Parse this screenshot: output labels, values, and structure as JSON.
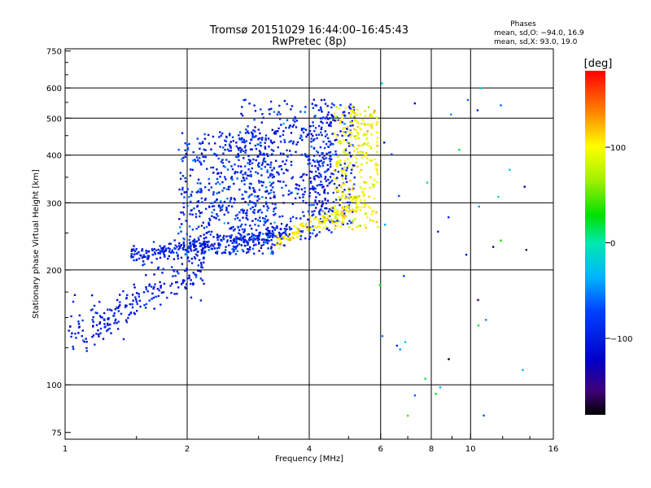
{
  "chart_data": {
    "type": "scatter",
    "title": "Tromsø 20151029 16:44:00–16:45:43",
    "subtitle": "RwPretec (8p)",
    "xlabel": "Frequency [MHz]",
    "ylabel": "Stationary phase Virtual Height [km]",
    "x_scale": "log",
    "y_scale": "log",
    "xlim": [
      1,
      16
    ],
    "ylim": [
      72,
      760
    ],
    "x_ticks": [
      1,
      2,
      4,
      6,
      8,
      10,
      16
    ],
    "x_tick_labels": [
      "1",
      "2",
      "4",
      "6",
      "8",
      "10",
      "16"
    ],
    "y_ticks": [
      75,
      100,
      200,
      300,
      400,
      500,
      600,
      750
    ],
    "y_tick_labels": [
      "75",
      "100",
      "200",
      "300",
      "400",
      "500",
      "600",
      "750"
    ],
    "grid": true,
    "stats": {
      "heading": "Phases",
      "line_o": "mean, sd,O: −94.0, 16.9",
      "line_x": "mean, sd,X:  93.0, 19.0"
    },
    "colorbar": {
      "label": "[deg]",
      "range": [
        -180,
        180
      ],
      "ticks": [
        100,
        0,
        -100
      ],
      "tick_labels": [
        "100",
        "0",
        "−100"
      ],
      "colormap": "rainbow"
    },
    "clusters": [
      {
        "name": "low_band",
        "seed": 11,
        "count": 230,
        "color_mean": -100,
        "color_sd": 14,
        "shape": "band",
        "x_range": [
          1.0,
          2.2
        ],
        "y_start": 130,
        "y_end": 205,
        "y_jitter": 0.07
      },
      {
        "name": "lower_trace",
        "seed": 12,
        "count": 320,
        "color_mean": -98,
        "color_sd": 16,
        "shape": "band",
        "x_range": [
          1.45,
          3.6
        ],
        "y_start": 218,
        "y_end": 248,
        "y_jitter": 0.03
      },
      {
        "name": "o_mass_1",
        "seed": 13,
        "count": 520,
        "color_mean": -90,
        "color_sd": 22,
        "shape": "box",
        "x_range": [
          1.9,
          3.3
        ],
        "y_range": [
          220,
          460
        ]
      },
      {
        "name": "o_mass_2",
        "seed": 14,
        "count": 430,
        "color_mean": -95,
        "color_sd": 18,
        "shape": "box",
        "x_range": [
          2.7,
          4.6
        ],
        "y_range": [
          240,
          560
        ]
      },
      {
        "name": "o_mass_3",
        "seed": 15,
        "count": 220,
        "color_mean": -95,
        "color_sd": 18,
        "shape": "box",
        "x_range": [
          4.0,
          5.2
        ],
        "y_range": [
          260,
          550
        ]
      },
      {
        "name": "x_trace",
        "seed": 16,
        "count": 130,
        "color_mean": 105,
        "color_sd": 8,
        "shape": "band",
        "x_range": [
          3.3,
          5.3
        ],
        "y_start": 236,
        "y_end": 300,
        "y_jitter": 0.025
      },
      {
        "name": "x_mass",
        "seed": 17,
        "count": 290,
        "color_mean": 98,
        "color_sd": 14,
        "shape": "box",
        "x_range": [
          4.6,
          5.9
        ],
        "y_range": [
          255,
          540
        ]
      },
      {
        "name": "sparse_high",
        "seed": 18,
        "count": 40,
        "color_mean": -60,
        "color_sd": 60,
        "shape": "box",
        "x_range": [
          5.9,
          14.0
        ],
        "y_range": [
          80,
          660
        ]
      }
    ]
  }
}
